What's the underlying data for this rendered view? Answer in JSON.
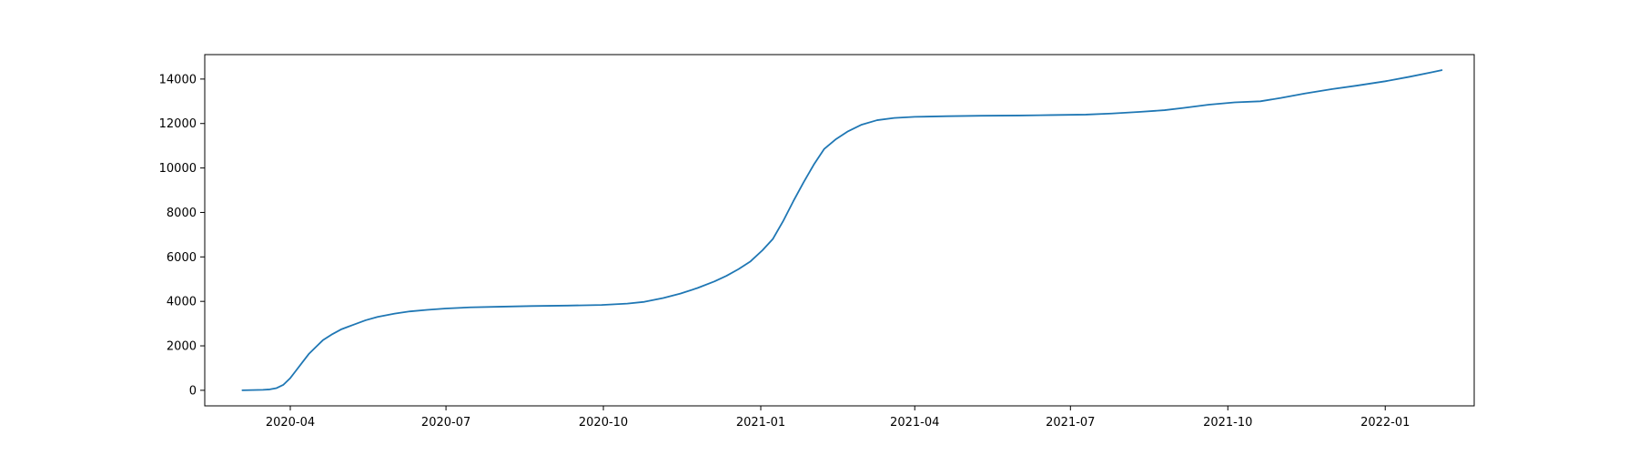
{
  "chart_data": {
    "type": "line",
    "title": "",
    "xlabel": "",
    "ylabel": "",
    "xlim": [
      "2020-02-11",
      "2022-02-22"
    ],
    "ylim": [
      -700,
      15100
    ],
    "grid": false,
    "legend": "none",
    "x_ticks": [
      {
        "date": "2020-04-01",
        "label": "2020-04"
      },
      {
        "date": "2020-07-01",
        "label": "2020-07"
      },
      {
        "date": "2020-10-01",
        "label": "2020-10"
      },
      {
        "date": "2021-01-01",
        "label": "2021-01"
      },
      {
        "date": "2021-04-01",
        "label": "2021-04"
      },
      {
        "date": "2021-07-01",
        "label": "2021-07"
      },
      {
        "date": "2021-10-01",
        "label": "2021-10"
      },
      {
        "date": "2022-01-01",
        "label": "2022-01"
      }
    ],
    "y_ticks": [
      {
        "value": 0,
        "label": "0"
      },
      {
        "value": 2000,
        "label": "2000"
      },
      {
        "value": 4000,
        "label": "4000"
      },
      {
        "value": 6000,
        "label": "6000"
      },
      {
        "value": 8000,
        "label": "8000"
      },
      {
        "value": 10000,
        "label": "10000"
      },
      {
        "value": 12000,
        "label": "12000"
      },
      {
        "value": 14000,
        "label": "14000"
      }
    ],
    "series": [
      {
        "color": "#1f77b4",
        "x": [
          "2020-03-04",
          "2020-03-10",
          "2020-03-16",
          "2020-03-20",
          "2020-03-24",
          "2020-03-28",
          "2020-04-01",
          "2020-04-04",
          "2020-04-08",
          "2020-04-12",
          "2020-04-16",
          "2020-04-20",
          "2020-04-25",
          "2020-05-01",
          "2020-05-08",
          "2020-05-15",
          "2020-05-22",
          "2020-06-01",
          "2020-06-10",
          "2020-06-20",
          "2020-07-01",
          "2020-07-15",
          "2020-08-01",
          "2020-08-20",
          "2020-09-10",
          "2020-09-30",
          "2020-10-15",
          "2020-10-25",
          "2020-11-05",
          "2020-11-15",
          "2020-11-25",
          "2020-12-05",
          "2020-12-12",
          "2020-12-19",
          "2020-12-26",
          "2021-01-02",
          "2021-01-08",
          "2021-01-14",
          "2021-01-20",
          "2021-01-26",
          "2021-02-01",
          "2021-02-07",
          "2021-02-14",
          "2021-02-21",
          "2021-03-01",
          "2021-03-10",
          "2021-03-20",
          "2021-04-01",
          "2021-04-20",
          "2021-05-10",
          "2021-06-01",
          "2021-06-20",
          "2021-07-10",
          "2021-07-25",
          "2021-08-10",
          "2021-08-25",
          "2021-09-05",
          "2021-09-20",
          "2021-10-05",
          "2021-10-20",
          "2021-11-01",
          "2021-11-15",
          "2021-12-01",
          "2021-12-15",
          "2022-01-01",
          "2022-01-15",
          "2022-01-28",
          "2022-02-03"
        ],
        "y": [
          0,
          10,
          20,
          40,
          100,
          250,
          550,
          850,
          1250,
          1650,
          1950,
          2250,
          2500,
          2750,
          2950,
          3150,
          3300,
          3450,
          3550,
          3620,
          3680,
          3730,
          3760,
          3790,
          3810,
          3840,
          3900,
          3980,
          4150,
          4350,
          4600,
          4900,
          5150,
          5450,
          5800,
          6300,
          6800,
          7600,
          8500,
          9350,
          10150,
          10850,
          11300,
          11650,
          11950,
          12150,
          12250,
          12300,
          12330,
          12350,
          12360,
          12380,
          12400,
          12450,
          12520,
          12600,
          12700,
          12850,
          12950,
          13000,
          13150,
          13350,
          13550,
          13700,
          13900,
          14100,
          14300,
          14400
        ]
      }
    ]
  }
}
